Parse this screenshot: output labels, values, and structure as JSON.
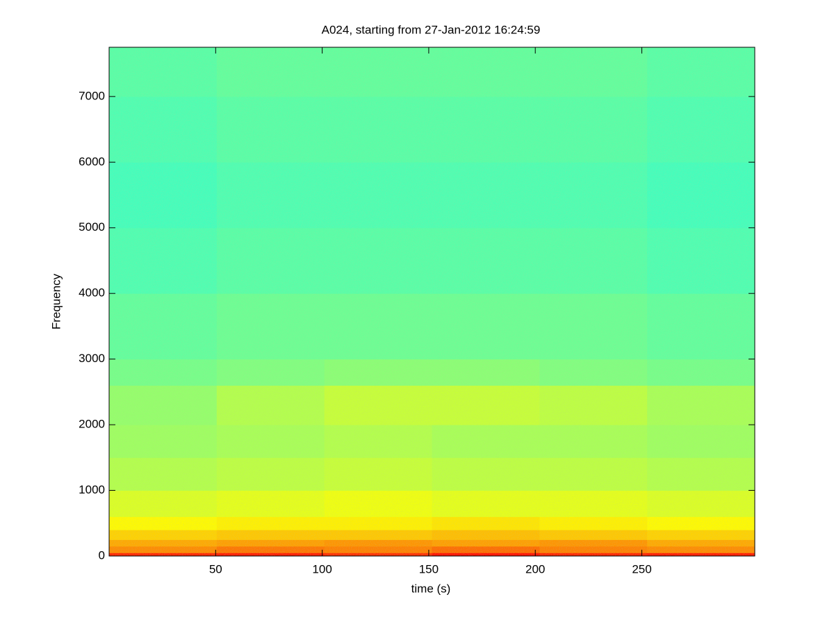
{
  "chart_data": {
    "type": "spectrogram",
    "title": "A024, starting from 27-Jan-2012 16:24:59",
    "xlabel": "time (s)",
    "ylabel": "Frequency",
    "colormap": "jet",
    "clim": [
      0,
      1
    ],
    "xlim": [
      0,
      303
    ],
    "ylim": [
      0,
      7750
    ],
    "xticks": [
      50,
      100,
      150,
      200,
      250
    ],
    "yticks": [
      0,
      1000,
      2000,
      3000,
      4000,
      5000,
      6000,
      7000
    ],
    "x_edges": [
      0,
      50.5,
      101,
      151.5,
      202,
      252.5,
      303
    ],
    "y_edges": [
      0,
      50,
      150,
      250,
      400,
      600,
      1000,
      1500,
      2000,
      2600,
      3000,
      4000,
      5000,
      6000,
      7000,
      7750
    ],
    "values": [
      [
        0.84,
        0.85,
        0.83,
        0.86,
        0.84,
        0.85
      ],
      [
        0.74,
        0.76,
        0.75,
        0.77,
        0.75,
        0.74
      ],
      [
        0.71,
        0.72,
        0.73,
        0.72,
        0.73,
        0.71
      ],
      [
        0.67,
        0.68,
        0.68,
        0.69,
        0.68,
        0.67
      ],
      [
        0.63,
        0.64,
        0.64,
        0.65,
        0.64,
        0.63
      ],
      [
        0.59,
        0.6,
        0.61,
        0.6,
        0.6,
        0.59
      ],
      [
        0.55,
        0.56,
        0.57,
        0.56,
        0.56,
        0.55
      ],
      [
        0.53,
        0.54,
        0.55,
        0.54,
        0.54,
        0.53
      ],
      [
        0.52,
        0.55,
        0.57,
        0.57,
        0.56,
        0.54
      ],
      [
        0.49,
        0.5,
        0.51,
        0.51,
        0.5,
        0.49
      ],
      [
        0.47,
        0.48,
        0.48,
        0.48,
        0.48,
        0.47
      ],
      [
        0.45,
        0.46,
        0.46,
        0.46,
        0.46,
        0.45
      ],
      [
        0.44,
        0.45,
        0.45,
        0.45,
        0.45,
        0.44
      ],
      [
        0.45,
        0.46,
        0.46,
        0.46,
        0.46,
        0.45
      ],
      [
        0.46,
        0.47,
        0.47,
        0.47,
        0.47,
        0.46
      ]
    ]
  }
}
